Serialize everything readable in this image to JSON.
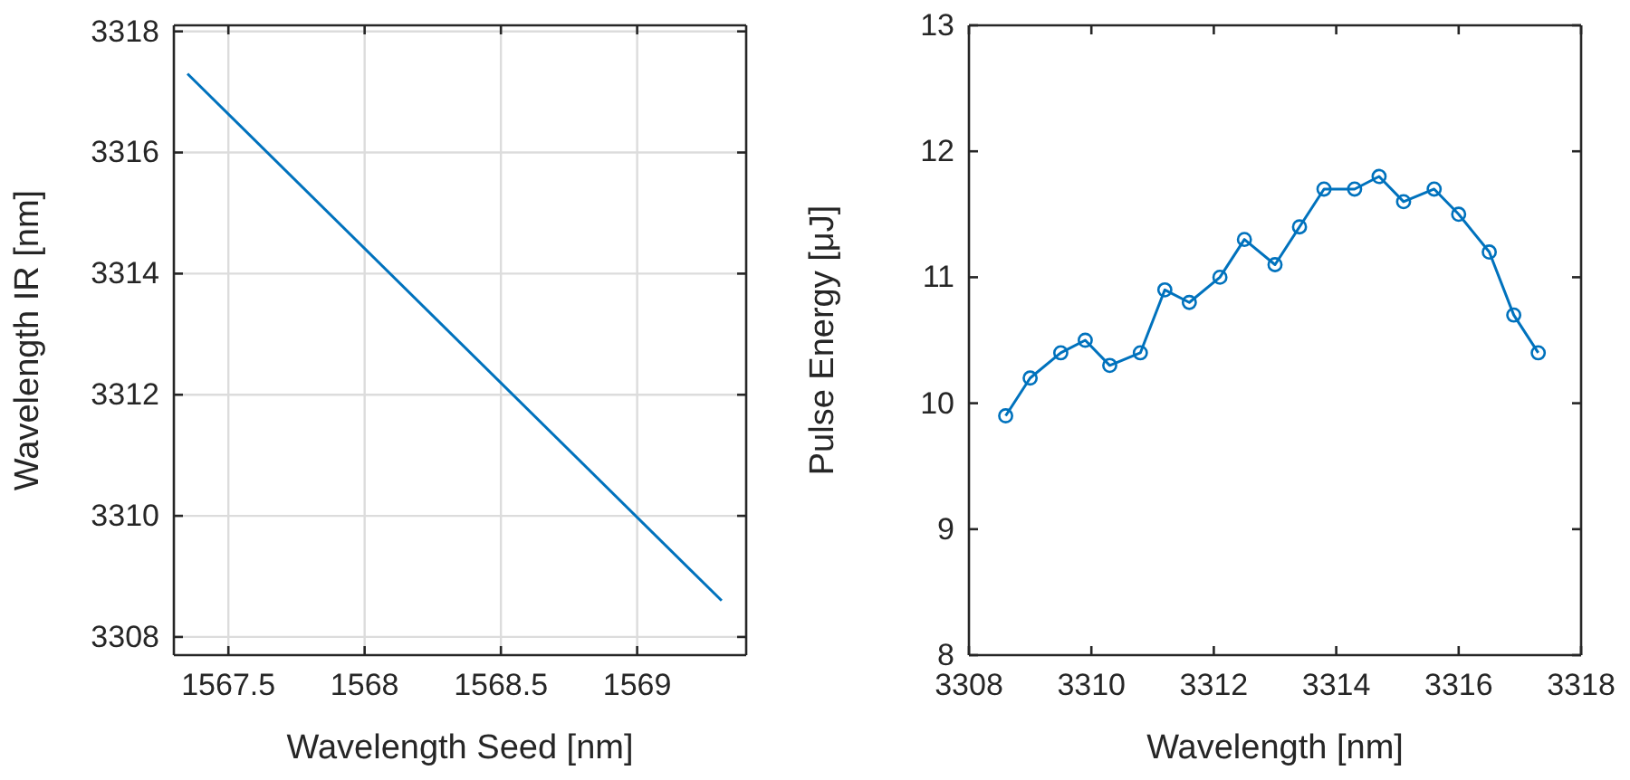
{
  "chart_data": [
    {
      "type": "line",
      "xlabel": "Wavelength Seed [nm]",
      "ylabel": "Wavelength IR [nm]",
      "x": [
        1567.35,
        1569.31
      ],
      "series": [
        {
          "color": "#0072bd",
          "values": [
            3317.3,
            3308.6
          ]
        }
      ],
      "xlim": [
        1567.3,
        1569.4
      ],
      "xticks": [
        1567.5,
        1568,
        1568.5,
        1569
      ],
      "ylim": [
        3307.7,
        3318.1
      ],
      "yticks": [
        3308,
        3310,
        3312,
        3314,
        3316,
        3318
      ],
      "grid": true,
      "marker": "none"
    },
    {
      "type": "line",
      "xlabel": "Wavelength [nm]",
      "ylabel": "Pulse Energy [μJ]",
      "x": [
        3308.6,
        3309.0,
        3309.5,
        3309.9,
        3310.3,
        3310.8,
        3311.2,
        3311.6,
        3312.1,
        3312.5,
        3313.0,
        3313.4,
        3313.8,
        3314.3,
        3314.7,
        3315.1,
        3315.6,
        3316.0,
        3316.5,
        3316.9,
        3317.3
      ],
      "series": [
        {
          "color": "#0072bd",
          "values": [
            9.9,
            10.2,
            10.4,
            10.5,
            10.3,
            10.4,
            10.9,
            10.8,
            11.0,
            11.3,
            11.1,
            11.4,
            11.7,
            11.7,
            11.8,
            11.6,
            11.7,
            11.5,
            11.2,
            10.7,
            10.4
          ]
        }
      ],
      "xlim": [
        3308,
        3318
      ],
      "xticks": [
        3308,
        3310,
        3312,
        3314,
        3316,
        3318
      ],
      "ylim": [
        8,
        13
      ],
      "yticks": [
        8,
        9,
        10,
        11,
        12,
        13
      ],
      "grid": false,
      "marker": "circle"
    }
  ]
}
